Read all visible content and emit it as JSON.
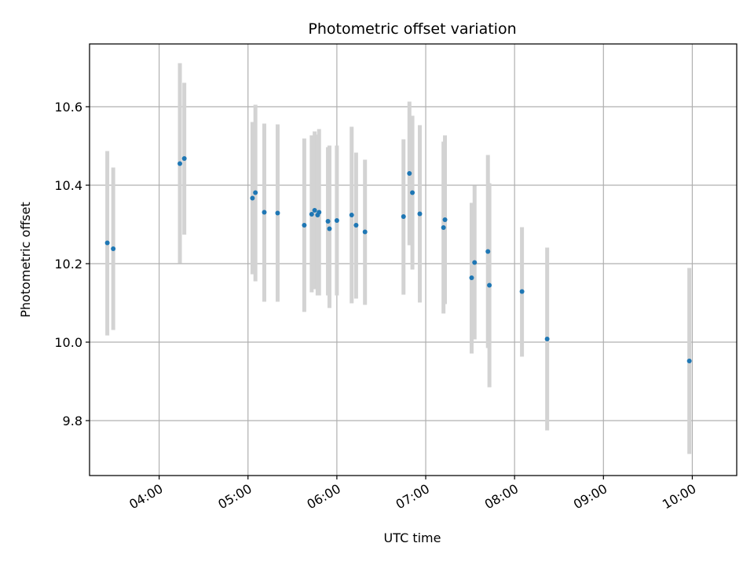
{
  "chart_data": {
    "type": "scatter",
    "title": "Photometric offset variation",
    "xlabel": "UTC time",
    "ylabel": "Photometric offset",
    "grid": true,
    "xlim": [
      "03:13",
      "10:30"
    ],
    "ylim": [
      9.66,
      10.76
    ],
    "x_ticks": [
      "04:00",
      "05:00",
      "06:00",
      "07:00",
      "08:00",
      "09:00",
      "10:00"
    ],
    "y_ticks": [
      "9.8",
      "10.0",
      "10.2",
      "10.4",
      "10.6"
    ],
    "point_color": "#1f77b4",
    "errorbar_color": "#d3d3d3",
    "points": [
      {
        "t": "03:25",
        "y": 10.253,
        "lo": 10.017,
        "hi": 10.487
      },
      {
        "t": "03:29",
        "y": 10.238,
        "lo": 10.031,
        "hi": 10.445
      },
      {
        "t": "04:14",
        "y": 10.455,
        "lo": 10.201,
        "hi": 10.711
      },
      {
        "t": "04:17",
        "y": 10.468,
        "lo": 10.274,
        "hi": 10.661
      },
      {
        "t": "05:03",
        "y": 10.367,
        "lo": 10.173,
        "hi": 10.561
      },
      {
        "t": "05:05",
        "y": 10.381,
        "lo": 10.155,
        "hi": 10.605
      },
      {
        "t": "05:11",
        "y": 10.331,
        "lo": 10.103,
        "hi": 10.557
      },
      {
        "t": "05:20",
        "y": 10.329,
        "lo": 10.103,
        "hi": 10.555
      },
      {
        "t": "05:38",
        "y": 10.298,
        "lo": 10.077,
        "hi": 10.519
      },
      {
        "t": "05:43",
        "y": 10.326,
        "lo": 10.127,
        "hi": 10.527
      },
      {
        "t": "05:45",
        "y": 10.336,
        "lo": 10.135,
        "hi": 10.537
      },
      {
        "t": "05:47",
        "y": 10.324,
        "lo": 10.119,
        "hi": 10.529
      },
      {
        "t": "05:48",
        "y": 10.331,
        "lo": 10.119,
        "hi": 10.543
      },
      {
        "t": "05:54",
        "y": 10.308,
        "lo": 10.119,
        "hi": 10.497
      },
      {
        "t": "05:55",
        "y": 10.289,
        "lo": 10.087,
        "hi": 10.501
      },
      {
        "t": "06:00",
        "y": 10.31,
        "lo": 10.119,
        "hi": 10.501
      },
      {
        "t": "06:10",
        "y": 10.324,
        "lo": 10.099,
        "hi": 10.549
      },
      {
        "t": "06:13",
        "y": 10.298,
        "lo": 10.111,
        "hi": 10.483
      },
      {
        "t": "06:19",
        "y": 10.281,
        "lo": 10.095,
        "hi": 10.465
      },
      {
        "t": "06:45",
        "y": 10.32,
        "lo": 10.121,
        "hi": 10.517
      },
      {
        "t": "06:49",
        "y": 10.43,
        "lo": 10.247,
        "hi": 10.613
      },
      {
        "t": "06:51",
        "y": 10.381,
        "lo": 10.185,
        "hi": 10.577
      },
      {
        "t": "06:56",
        "y": 10.327,
        "lo": 10.101,
        "hi": 10.553
      },
      {
        "t": "07:12",
        "y": 10.292,
        "lo": 10.073,
        "hi": 10.511
      },
      {
        "t": "07:13",
        "y": 10.312,
        "lo": 10.097,
        "hi": 10.527
      },
      {
        "t": "07:31",
        "y": 10.164,
        "lo": 9.971,
        "hi": 10.355
      },
      {
        "t": "07:33",
        "y": 10.203,
        "lo": 10.007,
        "hi": 10.399
      },
      {
        "t": "07:42",
        "y": 10.231,
        "lo": 9.985,
        "hi": 10.477
      },
      {
        "t": "07:43",
        "y": 10.145,
        "lo": 9.885,
        "hi": 10.405
      },
      {
        "t": "08:05",
        "y": 10.129,
        "lo": 9.963,
        "hi": 10.293
      },
      {
        "t": "08:22",
        "y": 10.008,
        "lo": 9.775,
        "hi": 10.241
      },
      {
        "t": "09:58",
        "y": 9.952,
        "lo": 9.715,
        "hi": 10.189
      }
    ]
  }
}
